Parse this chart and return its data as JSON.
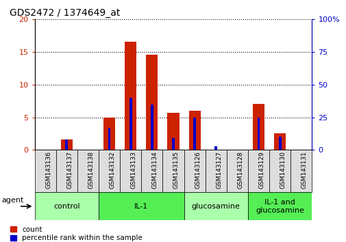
{
  "title": "GDS2472 / 1374649_at",
  "samples": [
    "GSM143136",
    "GSM143137",
    "GSM143138",
    "GSM143132",
    "GSM143133",
    "GSM143134",
    "GSM143135",
    "GSM143126",
    "GSM143127",
    "GSM143128",
    "GSM143129",
    "GSM143130",
    "GSM143131"
  ],
  "count_values": [
    0,
    1.6,
    0,
    5.0,
    16.6,
    14.6,
    5.7,
    6.0,
    0,
    0,
    7.1,
    2.6,
    0
  ],
  "percentile_values": [
    0,
    8,
    0,
    17,
    40,
    35,
    9,
    25,
    3,
    0,
    25,
    10,
    0
  ],
  "left_ylim": [
    0,
    20
  ],
  "right_ylim": [
    0,
    100
  ],
  "left_yticks": [
    0,
    5,
    10,
    15,
    20
  ],
  "right_yticks": [
    0,
    25,
    50,
    75,
    100
  ],
  "left_yticklabels": [
    "0",
    "5",
    "10",
    "15",
    "20"
  ],
  "right_yticklabels": [
    "0",
    "25",
    "50",
    "75",
    "100%"
  ],
  "groups": [
    {
      "label": "control",
      "start": 0,
      "end": 3,
      "color": "#aaffaa"
    },
    {
      "label": "IL-1",
      "start": 3,
      "end": 7,
      "color": "#55ee55"
    },
    {
      "label": "glucosamine",
      "start": 7,
      "end": 10,
      "color": "#aaffaa"
    },
    {
      "label": "IL-1 and\nglucosamine",
      "start": 10,
      "end": 13,
      "color": "#55ee55"
    }
  ],
  "bar_color_red": "#cc2200",
  "bar_color_blue": "#0000cc",
  "tick_label_color_left": "#cc2200",
  "tick_label_color_right": "#0000cc",
  "red_bar_width": 0.55,
  "blue_bar_width": 0.12,
  "legend_count_label": "count",
  "legend_percentile_label": "percentile rank within the sample",
  "agent_label": "agent",
  "background_color": "#ffffff",
  "grid_color": "#000000",
  "xtick_bg_color": "#dddddd"
}
